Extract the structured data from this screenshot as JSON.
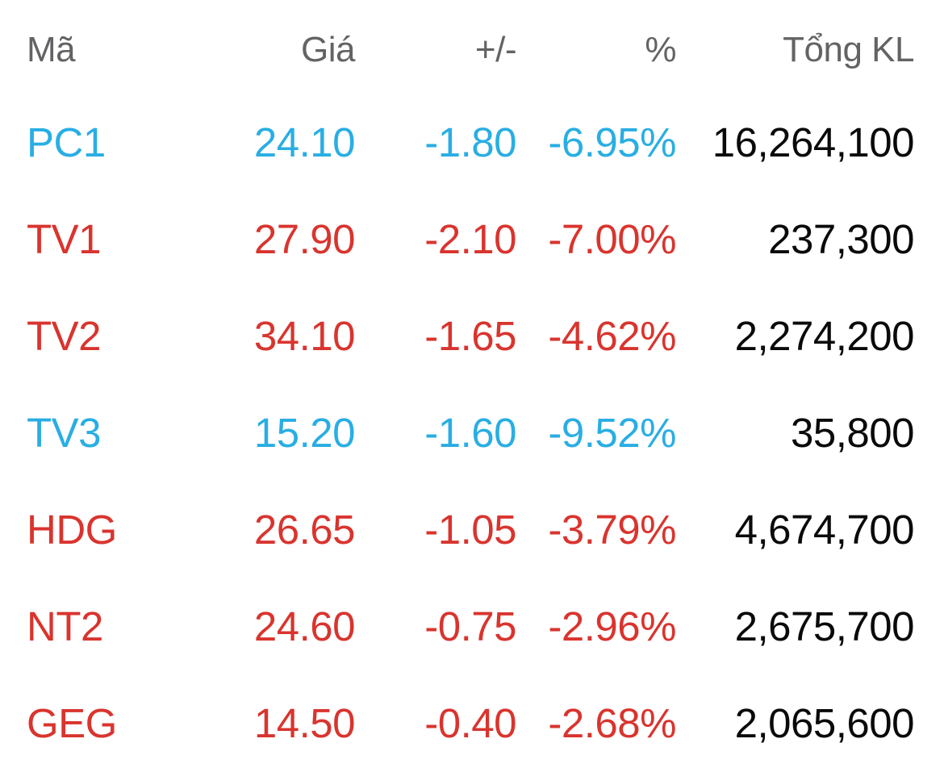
{
  "table": {
    "columns": [
      {
        "key": "symbol",
        "label": "Mã"
      },
      {
        "key": "price",
        "label": "Giá"
      },
      {
        "key": "change",
        "label": "+/-"
      },
      {
        "key": "percent",
        "label": "%"
      },
      {
        "key": "volume",
        "label": "Tổng KL"
      }
    ],
    "rows": [
      {
        "symbol": "PC1",
        "price": "24.10",
        "change": "-1.80",
        "percent": "-6.95%",
        "volume": "16,264,100",
        "state": "floor"
      },
      {
        "symbol": "TV1",
        "price": "27.90",
        "change": "-2.10",
        "percent": "-7.00%",
        "volume": "237,300",
        "state": "down"
      },
      {
        "symbol": "TV2",
        "price": "34.10",
        "change": "-1.65",
        "percent": "-4.62%",
        "volume": "2,274,200",
        "state": "down"
      },
      {
        "symbol": "TV3",
        "price": "15.20",
        "change": "-1.60",
        "percent": "-9.52%",
        "volume": "35,800",
        "state": "floor"
      },
      {
        "symbol": "HDG",
        "price": "26.65",
        "change": "-1.05",
        "percent": "-3.79%",
        "volume": "4,674,700",
        "state": "down"
      },
      {
        "symbol": "NT2",
        "price": "24.60",
        "change": "-0.75",
        "percent": "-2.96%",
        "volume": "2,675,700",
        "state": "down"
      },
      {
        "symbol": "GEG",
        "price": "14.50",
        "change": "-0.40",
        "percent": "-2.68%",
        "volume": "2,065,600",
        "state": "down"
      }
    ]
  },
  "colors": {
    "header_text": "#636366",
    "floor": "#29AEE3",
    "down": "#D9342E",
    "volume_text": "#0A0A0A",
    "background": "#FFFFFF"
  }
}
